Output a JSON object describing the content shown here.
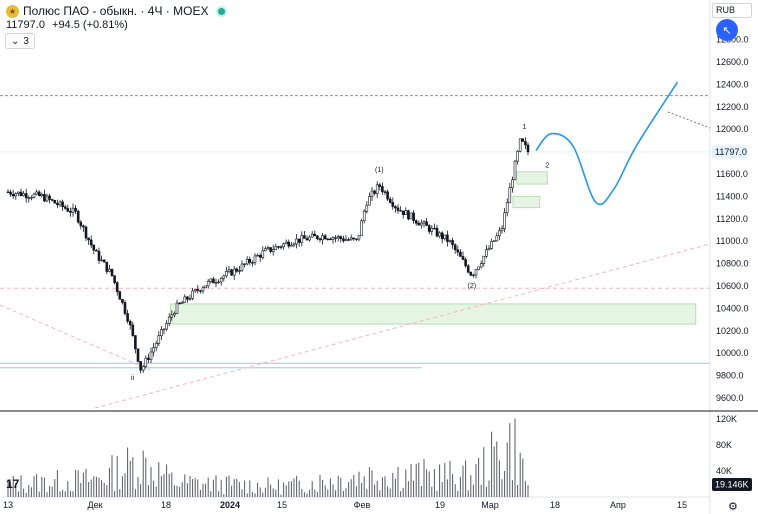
{
  "header": {
    "title": "Полюс ПАО - обыкн. · 4Ч · MOEX",
    "price": "11797.0",
    "change": "+94.5 (+0.81%)",
    "indicators_count": "3",
    "currency": "RUB"
  },
  "colors": {
    "accent": "#2962ff",
    "candle": "#131722",
    "projection": "#2196f3",
    "zone_fill": "#e6f4e3",
    "zone_stroke": "#b7dfb1",
    "hline": "#90caf9",
    "dashed_pink": "#f4b6c2",
    "status_green": "#22ab94"
  },
  "chart_data": [
    {
      "type": "candlestick",
      "title": "",
      "price_axis": {
        "ticks": [
          "12800.0",
          "12600.0",
          "12400.0",
          "12200.0",
          "12000.0",
          "11800.0",
          "11600.0",
          "11400.0",
          "11200.0",
          "11000.0",
          "10800.0",
          "10600.0",
          "10400.0",
          "10200.0",
          "10000.0",
          "9800.0",
          "9600.0"
        ],
        "range": [
          9470,
          12930
        ],
        "last_price_label": "11797.0"
      },
      "time_axis": {
        "labels": [
          "13",
          "Дек",
          "18",
          "2024",
          "15",
          "Фев",
          "19",
          "Мар",
          "18",
          "Апр",
          "15"
        ]
      },
      "price_path": [
        {
          "date": "2023-11-13",
          "price": 11440
        },
        {
          "date": "2023-11-20",
          "price": 11400
        },
        {
          "date": "2023-11-27",
          "price": 11250
        },
        {
          "date": "2023-12-01",
          "price": 10900
        },
        {
          "date": "2023-12-05",
          "price": 10700
        },
        {
          "date": "2023-12-09",
          "price": 10300
        },
        {
          "date": "2023-12-12",
          "price": 9850
        },
        {
          "date": "2023-12-15",
          "price": 10050
        },
        {
          "date": "2023-12-20",
          "price": 10400
        },
        {
          "date": "2023-12-26",
          "price": 10600
        },
        {
          "date": "2024-01-03",
          "price": 10750
        },
        {
          "date": "2024-01-10",
          "price": 10900
        },
        {
          "date": "2024-01-17",
          "price": 11000
        },
        {
          "date": "2024-01-24",
          "price": 11050
        },
        {
          "date": "2024-01-31",
          "price": 11000
        },
        {
          "date": "2024-02-02",
          "price": 11350
        },
        {
          "date": "2024-02-05",
          "price": 11500
        },
        {
          "date": "2024-02-09",
          "price": 11300
        },
        {
          "date": "2024-02-15",
          "price": 11150
        },
        {
          "date": "2024-02-21",
          "price": 11000
        },
        {
          "date": "2024-02-26",
          "price": 10700
        },
        {
          "date": "2024-03-01",
          "price": 10950
        },
        {
          "date": "2024-03-04",
          "price": 11100
        },
        {
          "date": "2024-03-07",
          "price": 11600
        },
        {
          "date": "2024-03-09",
          "price": 11900
        },
        {
          "date": "2024-03-11",
          "price": 11797
        }
      ],
      "wave_labels": [
        {
          "text": "(1)",
          "date": "2024-02-05",
          "price": 11620
        },
        {
          "text": "(2)",
          "date": "2024-02-26",
          "price": 10580
        },
        {
          "text": "1",
          "date": "2024-03-10",
          "price": 12000
        },
        {
          "text": "2",
          "date": "2024-03-16",
          "price": 11660
        },
        {
          "text": "ii",
          "date": "2023-12-10",
          "price": 9760
        }
      ],
      "projection_path": [
        {
          "date": "2024-03-13",
          "price": 11810
        },
        {
          "date": "2024-03-17",
          "price": 11960
        },
        {
          "date": "2024-03-22",
          "price": 11850
        },
        {
          "date": "2024-03-27",
          "price": 11350
        },
        {
          "date": "2024-03-31",
          "price": 11460
        },
        {
          "date": "2024-04-05",
          "price": 11850
        },
        {
          "date": "2024-04-14",
          "price": 12420
        }
      ],
      "zones": [
        {
          "from_date": "2023-12-19",
          "to_date": "2024-04-18",
          "low": 10260,
          "high": 10440
        },
        {
          "from_date": "2024-03-08",
          "to_date": "2024-03-16",
          "low": 11510,
          "high": 11620
        },
        {
          "from_date": "2024-03-07",
          "to_date": "2024-03-14",
          "low": 11300,
          "high": 11400
        }
      ],
      "horizontal_lines": [
        {
          "price": 12300,
          "style": "dashed-blue"
        },
        {
          "price": 10580,
          "style": "dashed-pink"
        },
        {
          "price": 9910,
          "style": "solid-blue"
        },
        {
          "price": 9870,
          "style": "solid-blue-short"
        }
      ]
    },
    {
      "type": "bar",
      "title": "",
      "series": "volume",
      "volume_axis": {
        "ticks": [
          "120K",
          "80K",
          "40K"
        ],
        "range": [
          0,
          135000
        ],
        "last_volume_label": "19.146K"
      },
      "volume_levels": [
        {
          "date": "2023-11-13",
          "volume": 22000
        },
        {
          "date": "2023-12-01",
          "volume": 30000
        },
        {
          "date": "2023-12-12",
          "volume": 60000
        },
        {
          "date": "2023-12-20",
          "volume": 25000
        },
        {
          "date": "2024-01-15",
          "volume": 18000
        },
        {
          "date": "2024-02-05",
          "volume": 40000
        },
        {
          "date": "2024-02-26",
          "volume": 35000
        },
        {
          "date": "2024-03-07",
          "volume": 95000
        },
        {
          "date": "2024-03-11",
          "volume": 19146
        }
      ]
    }
  ]
}
